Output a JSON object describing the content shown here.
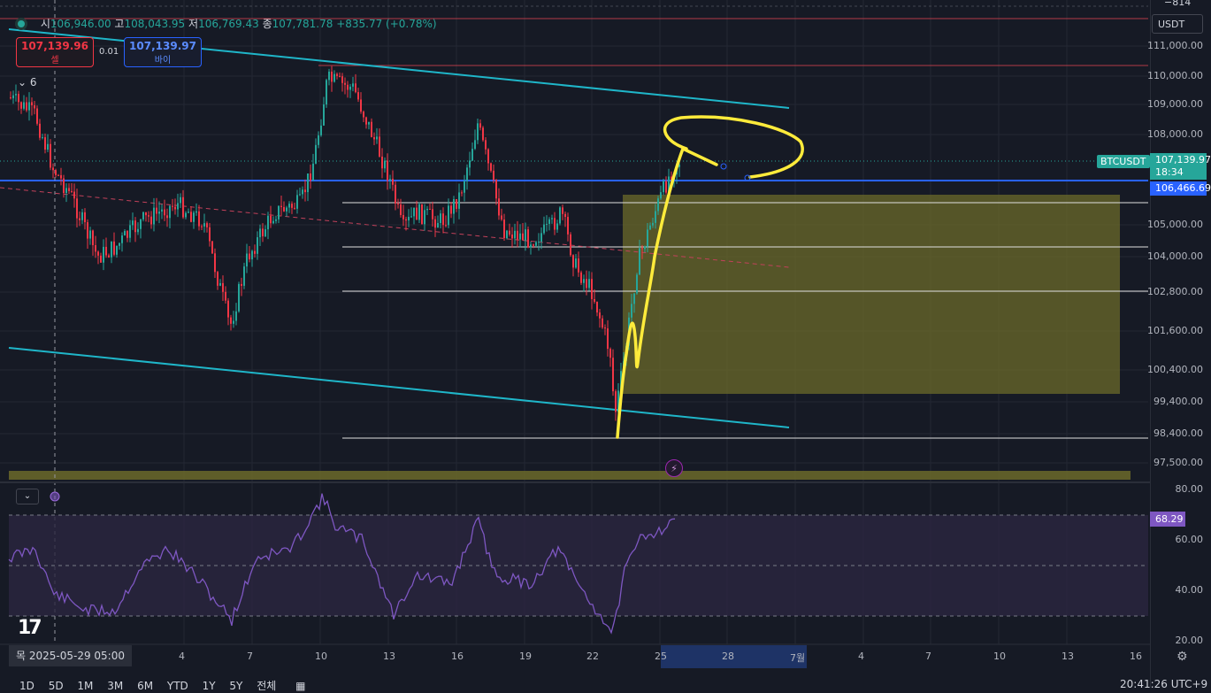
{
  "ohlc": {
    "open_label": "시",
    "open": "106,946.00",
    "high_label": "고",
    "high": "108,043.95",
    "low_label": "저",
    "low": "106,769.43",
    "close_label": "종",
    "close": "107,781.78",
    "change": "+835.77 (+0.78%)"
  },
  "order": {
    "sell_price": "107,139.96",
    "sell_label": "셀",
    "spread": "0.01",
    "buy_price": "107,139.97",
    "buy_label": "바이"
  },
  "indicators_collapsed_count": "6",
  "currency": "USDT",
  "top_value": "−814",
  "price_axis": [
    "111,000.00",
    "110,000.00",
    "109,000.00",
    "108,000.00",
    "105,000.00",
    "104,000.00",
    "102,800.00",
    "101,600.00",
    "100,400.00",
    "99,400.00",
    "98,400.00",
    "97,500.00"
  ],
  "symbol_badge": "BTCUSDT",
  "last_price": "107,139.97",
  "countdown": "18:34",
  "line_price": "106,466.69",
  "rsi_axis": [
    "80.00",
    "60.00",
    "40.00",
    "20.00"
  ],
  "rsi_value": "68.29",
  "time_axis": [
    "4",
    "7",
    "10",
    "13",
    "16",
    "19",
    "22",
    "25",
    "28",
    "7월",
    "4",
    "7",
    "10",
    "13",
    "16"
  ],
  "date_badge": "목 2025-05-29  05:00",
  "timeframes": [
    "1D",
    "5D",
    "1M",
    "3M",
    "6M",
    "YTD",
    "1Y",
    "5Y",
    "전체"
  ],
  "utc_time": "20:41:26 UTC+9",
  "colors": {
    "background": "#161a25",
    "up": "#26a69a",
    "down": "#f23645",
    "channel": "#1fb6c9",
    "support_zone": "#6b6a2a",
    "drawing": "#ffeb3b",
    "rsi": "#7e57c2",
    "price_line": "#2962ff"
  },
  "icons": [
    "settings-gear-icon",
    "calendar-icon",
    "lightning-icon",
    "chevron-down-icon",
    "tradingview-logo-icon"
  ]
}
